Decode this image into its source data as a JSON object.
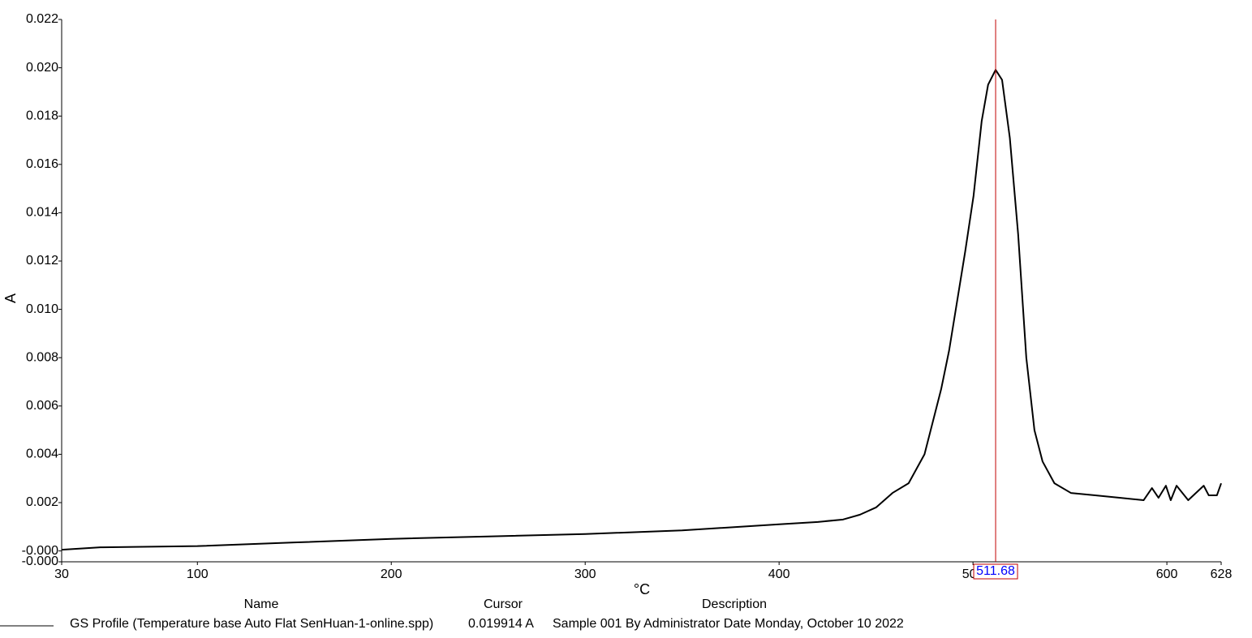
{
  "chart_data": {
    "type": "line",
    "x_label": "°C",
    "y_label": "A",
    "xlim": [
      30,
      628
    ],
    "ylim": [
      -0.00045,
      0.022
    ],
    "xticks": [
      30,
      100,
      200,
      300,
      400,
      500,
      600,
      628
    ],
    "yticks": [
      {
        "value": -0.00045,
        "label": "-0.000"
      },
      {
        "value": 0,
        "label": "-0.000"
      },
      0.002,
      0.004,
      0.006,
      0.008,
      {
        "value": 0.01,
        "label": "0.010"
      },
      0.012,
      0.014,
      0.016,
      0.018,
      {
        "value": 0.02,
        "label": "0.020"
      },
      0.022
    ],
    "x": [
      30,
      50,
      100,
      150,
      200,
      250,
      300,
      350,
      400,
      420,
      433,
      441.7,
      450,
      458.5,
      466.8,
      475,
      483.6,
      487.7,
      496,
      500.3,
      504.5,
      507.8,
      511.68,
      515,
      519,
      523.3,
      527.5,
      531.7,
      535.9,
      542,
      550.5,
      563,
      575.6,
      588,
      592.3,
      595.7,
      599.5,
      602,
      605,
      611,
      619,
      621.6,
      625.8,
      628
    ],
    "series": [
      {
        "name": "GS Profile (Temperature  base Auto Flat SenHuan-1-online.spp)",
        "description": "Sample 001 By Administrator Date Monday, October 10 2022",
        "color": "#000000",
        "values": [
          5e-05,
          0.00015,
          0.0002,
          0.00035,
          0.0005,
          0.0006,
          0.0007,
          0.00085,
          0.0011,
          0.0012,
          0.0013,
          0.0015,
          0.0018,
          0.0024,
          0.0028,
          0.004,
          0.0067,
          0.0083,
          0.0124,
          0.0147,
          0.0178,
          0.0193,
          0.019914,
          0.0195,
          0.0171,
          0.0131,
          0.008,
          0.005,
          0.0037,
          0.0028,
          0.0024,
          0.0023,
          0.0022,
          0.0021,
          0.0026,
          0.0022,
          0.0027,
          0.0021,
          0.0027,
          0.0021,
          0.0027,
          0.0023,
          0.0023,
          0.0028
        ]
      }
    ],
    "cursor": {
      "x": 511.68,
      "value": 0.019914,
      "value_label": "0.019914 A",
      "color": "#c00000"
    },
    "legend": {
      "headers": [
        "Name",
        "Cursor",
        "Description"
      ]
    }
  }
}
